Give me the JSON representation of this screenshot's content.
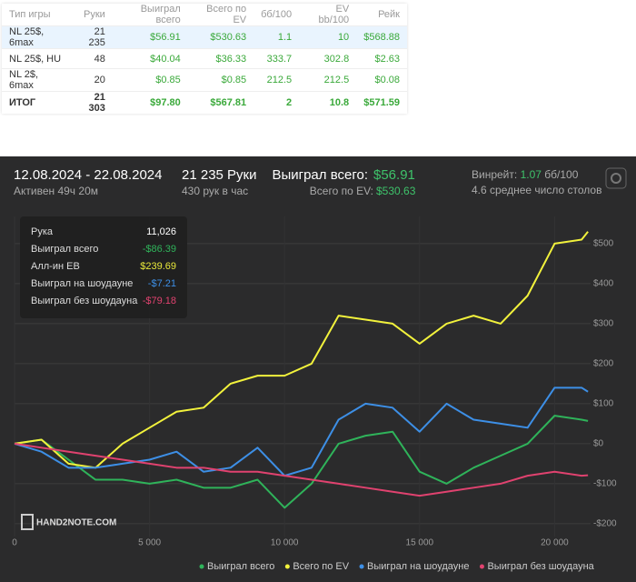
{
  "table": {
    "headers": [
      "Тип игры",
      "Руки",
      "Выиграл всего",
      "Всего по EV",
      "бб/100",
      "EV bb/100",
      "Рейк"
    ],
    "rows": [
      [
        "NL 25$, 6max",
        "21 235",
        "$56.91",
        "$530.63",
        "1.1",
        "10",
        "$568.88"
      ],
      [
        "NL 25$, HU",
        "48",
        "$40.04",
        "$36.33",
        "333.7",
        "302.8",
        "$2.63"
      ],
      [
        "NL 2$, 6max",
        "20",
        "$0.85",
        "$0.85",
        "212.5",
        "212.5",
        "$0.08"
      ],
      [
        "ИТОГ",
        "21 303",
        "$97.80",
        "$567.81",
        "2",
        "10.8",
        "$571.59"
      ]
    ]
  },
  "panel": {
    "date_range": "12.08.2024 - 22.08.2024",
    "active": "Активен 49ч 20м",
    "hands": "21 235 Руки",
    "rate": "430 рук в час",
    "won_label": "Выиграл всего:",
    "won_value": "$56.91",
    "ev_label": "Всего по EV:",
    "ev_value": "$530.63",
    "winrate_label": "Винрейт:",
    "winrate_value": "1.07",
    "winrate_unit": "бб/100",
    "tables": "4.6 среднее число столов"
  },
  "tooltip": {
    "rows": [
      [
        "Рука",
        "11,026"
      ],
      [
        "Выиграл всего",
        "-$86.39"
      ],
      [
        "Алл-ин ЕВ",
        "$239.69"
      ],
      [
        "Выиграл на шоудауне",
        "-$7.21"
      ],
      [
        "Выиграл без шоудауна",
        "-$79.18"
      ]
    ]
  },
  "logo": "HAND2NOTE.COM",
  "chart_data": {
    "type": "line",
    "x": [
      0,
      1000,
      2000,
      3000,
      4000,
      5000,
      6000,
      7000,
      8000,
      9000,
      10000,
      11000,
      12000,
      13000,
      14000,
      15000,
      16000,
      17000,
      18000,
      19000,
      20000,
      21000,
      21235
    ],
    "xlim": [
      0,
      21500
    ],
    "xticks": [
      0,
      {
        "value": 5000,
        "label": "5 000"
      },
      {
        "value": 10000,
        "label": "10 000"
      },
      {
        "value": 15000,
        "label": "15 000"
      },
      {
        "value": 20000,
        "label": "20 000"
      }
    ],
    "ylim": [
      -232,
      568
    ],
    "yticks": [
      {
        "value": -200,
        "label": "-$200"
      },
      {
        "value": -100,
        "label": "-$100"
      },
      {
        "value": 0,
        "label": "$0"
      },
      {
        "value": 100,
        "label": "$100"
      },
      {
        "value": 200,
        "label": "$200"
      },
      {
        "value": 300,
        "label": "$300"
      },
      {
        "value": 400,
        "label": "$400"
      },
      {
        "value": 500,
        "label": "$500"
      }
    ],
    "grid": true,
    "legend": "bottom",
    "series": [
      {
        "name": "Выиграл всего",
        "color": "#2fb35a",
        "values": [
          0,
          10,
          -40,
          -90,
          -90,
          -100,
          -90,
          -110,
          -110,
          -90,
          -160,
          -100,
          0,
          20,
          30,
          -70,
          -100,
          -60,
          -30,
          0,
          70,
          60,
          57
        ]
      },
      {
        "name": "Всего по EV",
        "color": "#f2f23c",
        "values": [
          0,
          10,
          -50,
          -60,
          0,
          40,
          80,
          90,
          150,
          170,
          170,
          200,
          320,
          310,
          300,
          250,
          300,
          320,
          300,
          370,
          500,
          510,
          530
        ]
      },
      {
        "name": "Выиграл на шоудауне",
        "color": "#3d8fe6",
        "values": [
          0,
          -20,
          -60,
          -60,
          -50,
          -40,
          -20,
          -70,
          -60,
          -10,
          -80,
          -60,
          60,
          100,
          90,
          30,
          100,
          60,
          50,
          40,
          140,
          140,
          130
        ]
      },
      {
        "name": "Выиграл без шоудауна",
        "color": "#e0426f",
        "values": [
          0,
          -10,
          -20,
          -30,
          -40,
          -50,
          -60,
          -60,
          -70,
          -70,
          -80,
          -90,
          -100,
          -110,
          -120,
          -130,
          -120,
          -110,
          -100,
          -80,
          -70,
          -80,
          -79
        ]
      }
    ]
  }
}
